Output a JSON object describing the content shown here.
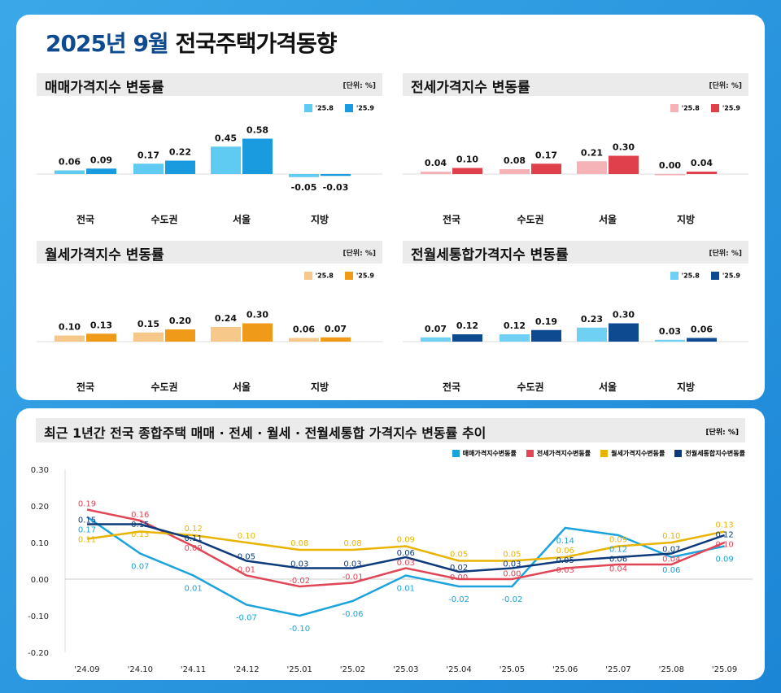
{
  "title": {
    "highlight": "2025년 9월",
    "rest": "전국주택가격동향"
  },
  "unit": "[단위: %]",
  "bar_legend": [
    "'25.8",
    "'25.9"
  ],
  "chart_data": [
    {
      "type": "bar",
      "title": "매매가격지수 변동률",
      "categories": [
        "전국",
        "수도권",
        "서울",
        "지방"
      ],
      "colors": [
        "#5fcbf3",
        "#1a9be0"
      ],
      "series": [
        {
          "name": "'25.8",
          "values": [
            0.06,
            0.17,
            0.45,
            -0.05
          ]
        },
        {
          "name": "'25.9",
          "values": [
            0.09,
            0.22,
            0.58,
            -0.03
          ]
        }
      ]
    },
    {
      "type": "bar",
      "title": "전세가격지수 변동률",
      "categories": [
        "전국",
        "수도권",
        "서울",
        "지방"
      ],
      "colors": [
        "#f5b3b8",
        "#e0404c"
      ],
      "series": [
        {
          "name": "'25.8",
          "values": [
            0.04,
            0.08,
            0.21,
            0.0
          ]
        },
        {
          "name": "'25.9",
          "values": [
            0.1,
            0.17,
            0.3,
            0.04
          ]
        }
      ]
    },
    {
      "type": "bar",
      "title": "월세가격지수 변동률",
      "categories": [
        "전국",
        "수도권",
        "서울",
        "지방"
      ],
      "colors": [
        "#f6c98a",
        "#f09a1a"
      ],
      "series": [
        {
          "name": "'25.8",
          "values": [
            0.1,
            0.15,
            0.24,
            0.06
          ]
        },
        {
          "name": "'25.9",
          "values": [
            0.13,
            0.2,
            0.3,
            0.07
          ]
        }
      ]
    },
    {
      "type": "bar",
      "title": "전월세통합가격지수 변동률",
      "categories": [
        "전국",
        "수도권",
        "서울",
        "지방"
      ],
      "colors": [
        "#6fd0f3",
        "#0d4a8f"
      ],
      "series": [
        {
          "name": "'25.8",
          "values": [
            0.07,
            0.12,
            0.23,
            0.03
          ]
        },
        {
          "name": "'25.9",
          "values": [
            0.12,
            0.19,
            0.3,
            0.06
          ]
        }
      ]
    },
    {
      "type": "line",
      "title": "최근 1년간 전국 종합주택 매매 · 전세 · 월세 · 전월세통합 가격지수 변동률 추이",
      "x": [
        "'24.09",
        "'24.10",
        "'24.11",
        "'24.12",
        "'25.01",
        "'25.02",
        "'25.03",
        "'25.04",
        "'25.05",
        "'25.06",
        "'25.07",
        "'25.08",
        "'25.09"
      ],
      "ylim": [
        -0.2,
        0.3
      ],
      "yticks": [
        "0.30",
        "0.20",
        "0.10",
        "0.00",
        "-0.10",
        "-0.20"
      ],
      "legend": "top-right",
      "series": [
        {
          "name": "매매가격지수변동률",
          "color": "#1aa3dc",
          "values": [
            0.17,
            0.07,
            0.01,
            -0.07,
            -0.1,
            -0.06,
            0.01,
            -0.02,
            -0.02,
            0.14,
            0.12,
            0.06,
            0.09
          ]
        },
        {
          "name": "전세가격지수변동률",
          "color": "#e04656",
          "values": [
            0.19,
            0.16,
            0.09,
            0.01,
            -0.02,
            -0.01,
            0.03,
            0.0,
            0.0,
            0.03,
            0.04,
            0.04,
            0.1
          ]
        },
        {
          "name": "월세가격지수변동률",
          "color": "#e8b400",
          "values": [
            0.11,
            0.13,
            0.12,
            0.1,
            0.08,
            0.08,
            0.09,
            0.05,
            0.05,
            0.06,
            0.09,
            0.1,
            0.13
          ]
        },
        {
          "name": "전월세통합지수변동률",
          "color": "#0d3a7a",
          "values": [
            0.15,
            0.15,
            0.11,
            0.05,
            0.03,
            0.03,
            0.06,
            0.02,
            0.03,
            0.05,
            0.06,
            0.07,
            0.12
          ]
        }
      ]
    }
  ]
}
